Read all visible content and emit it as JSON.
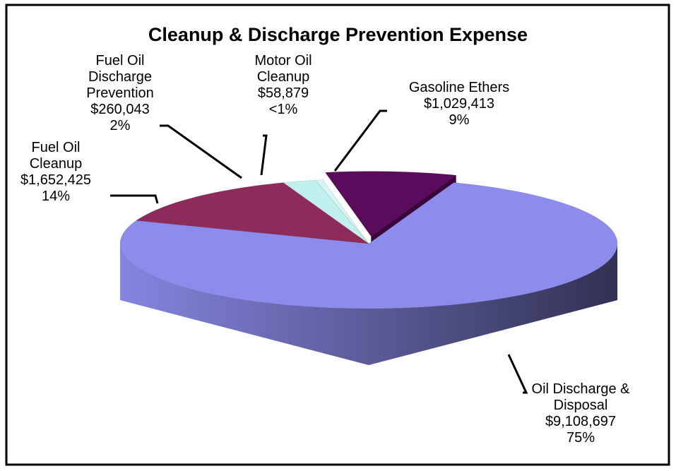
{
  "chart_data": {
    "type": "pie3d",
    "title": "Cleanup & Discharge Prevention Expense",
    "categories": [
      "Oil Discharge & Disposal",
      "Fuel Oil Cleanup",
      "Fuel Oil Discharge Prevention",
      "Motor Oil Cleanup",
      "Gasoline Ethers"
    ],
    "values": [
      9108697,
      1652425,
      260043,
      58879,
      1029413
    ],
    "value_labels": [
      "$9,108,697",
      "$1,652,425",
      "$260,043",
      "$58,879",
      "$1,029,413"
    ],
    "percent_labels": [
      "75%",
      "14%",
      "2%",
      "<1%",
      "9%"
    ],
    "colors": [
      "#8c8cec",
      "#8e2b5a",
      "#bff0ee",
      "#d8f4f2",
      "#5a0b5c"
    ],
    "exploded": [
      false,
      false,
      false,
      false,
      true
    ]
  }
}
